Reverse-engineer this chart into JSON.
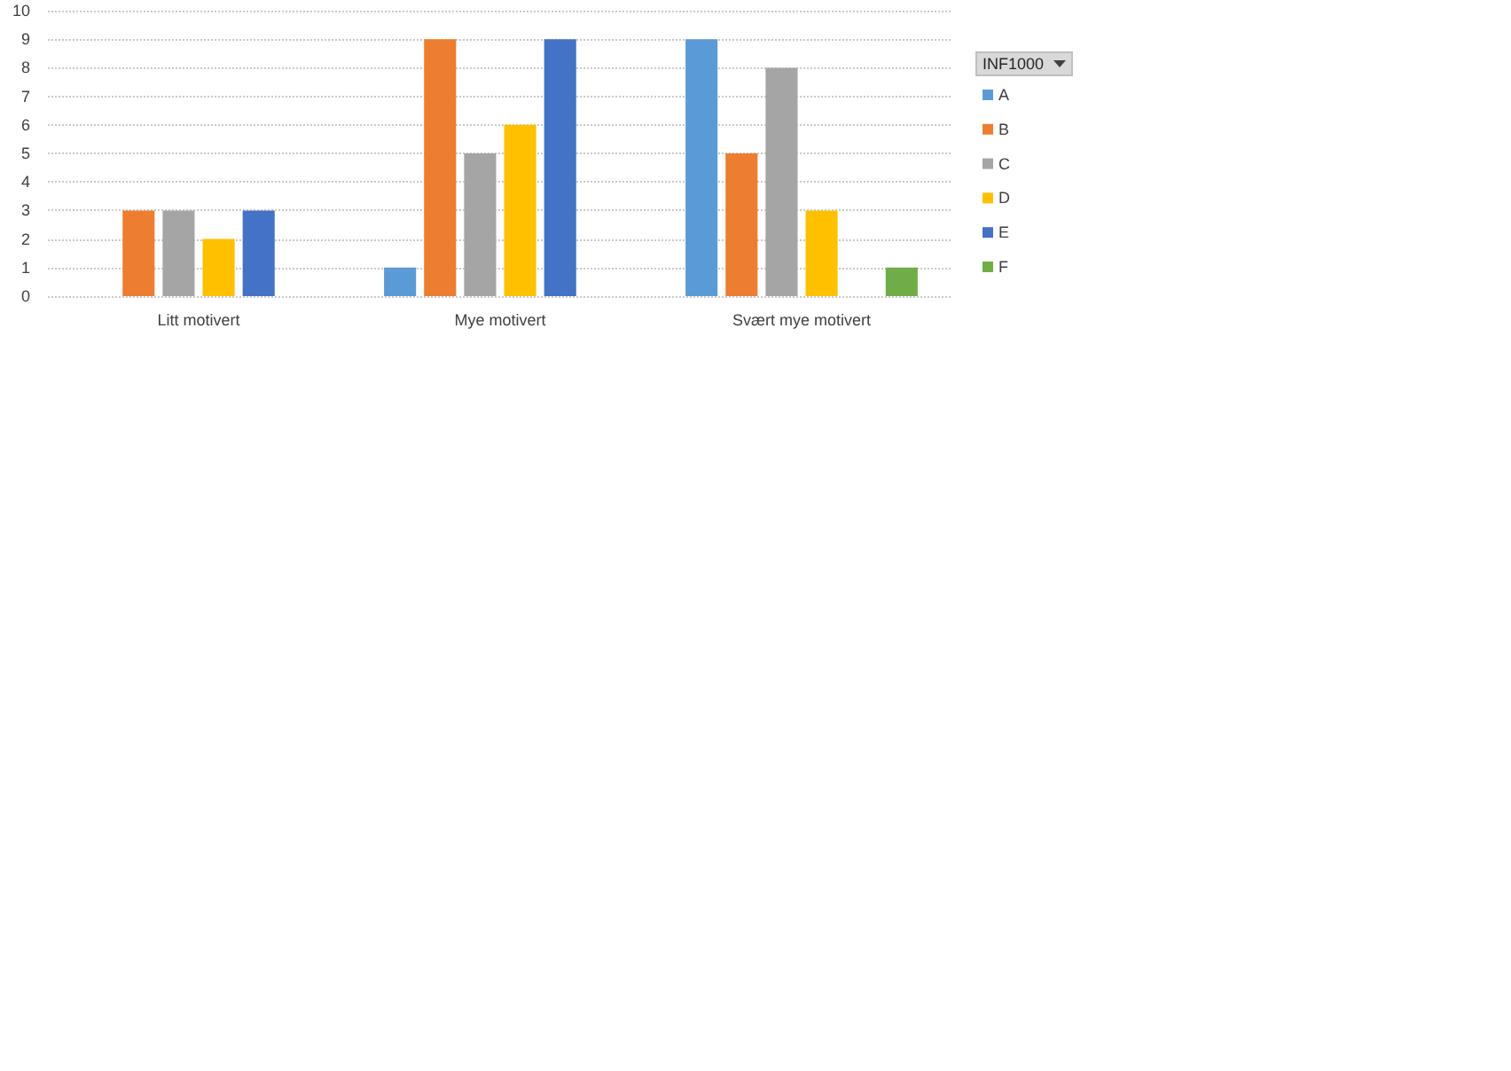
{
  "chart_data": {
    "type": "bar",
    "categories": [
      "Litt motivert",
      "Mye motivert",
      "Svært mye motivert"
    ],
    "series": [
      {
        "name": "A",
        "color": "#5b9bd5",
        "values": [
          null,
          1,
          9
        ]
      },
      {
        "name": "B",
        "color": "#ed7d31",
        "values": [
          3,
          9,
          5
        ]
      },
      {
        "name": "C",
        "color": "#a5a5a5",
        "values": [
          3,
          5,
          8
        ]
      },
      {
        "name": "D",
        "color": "#ffc000",
        "values": [
          2,
          6,
          3
        ]
      },
      {
        "name": "E",
        "color": "#4472c4",
        "values": [
          3,
          9,
          null
        ]
      },
      {
        "name": "F",
        "color": "#70ad47",
        "values": [
          null,
          null,
          1
        ]
      }
    ],
    "ylim": [
      0,
      10
    ],
    "yticks": [
      0,
      1,
      2,
      3,
      4,
      5,
      6,
      7,
      8,
      9,
      10
    ],
    "grid": "y",
    "legend": "right",
    "legend_title": "INF1000"
  }
}
